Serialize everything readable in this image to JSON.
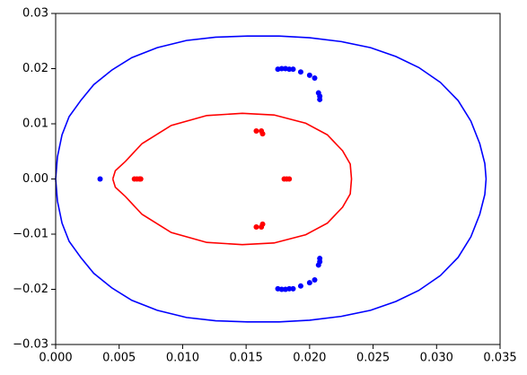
{
  "chart_data": {
    "type": "line",
    "xlim": [
      0,
      0.035
    ],
    "ylim": [
      -0.03,
      0.03
    ],
    "xticks": [
      {
        "value": 0,
        "label": "0.000"
      },
      {
        "value": 0.005,
        "label": "0.005"
      },
      {
        "value": 0.01,
        "label": "0.010"
      },
      {
        "value": 0.015,
        "label": "0.015"
      },
      {
        "value": 0.02,
        "label": "0.020"
      },
      {
        "value": 0.025,
        "label": "0.025"
      },
      {
        "value": 0.03,
        "label": "0.030"
      },
      {
        "value": 0.035,
        "label": "0.035"
      }
    ],
    "yticks": [
      {
        "value": -0.03,
        "label": "−0.03"
      },
      {
        "value": -0.02,
        "label": "−0.02"
      },
      {
        "value": -0.01,
        "label": "−0.01"
      },
      {
        "value": 0,
        "label": "0.00"
      },
      {
        "value": 0.01,
        "label": "0.01"
      },
      {
        "value": 0.02,
        "label": "0.02"
      },
      {
        "value": 0.03,
        "label": "0.03"
      }
    ],
    "grid": false,
    "series": [
      {
        "type": "line",
        "color": "#0000ff",
        "x": [
          0,
          0.00014,
          0.0005,
          0.00106,
          0.002,
          0.003,
          0.0044,
          0.006,
          0.008,
          0.0103,
          0.0126,
          0.0151,
          0.0176,
          0.02,
          0.0225,
          0.0248,
          0.0268,
          0.0286,
          0.0303,
          0.0317,
          0.0327,
          0.0334,
          0.0338,
          0.0339,
          0.0338,
          0.0334,
          0.0327,
          0.0317,
          0.0303,
          0.0286,
          0.0268,
          0.0248,
          0.0225,
          0.02,
          0.0176,
          0.0151,
          0.0126,
          0.0103,
          0.008,
          0.006,
          0.0044,
          0.003,
          0.002,
          0.00106,
          0.0005,
          0.00014,
          0
        ],
        "values": [
          0,
          0.004,
          0.008,
          0.0113,
          0.0143,
          0.0171,
          0.0197,
          0.022,
          0.0238,
          0.0251,
          0.0257,
          0.0259,
          0.0259,
          0.0256,
          0.0249,
          0.0238,
          0.0222,
          0.0202,
          0.0175,
          0.0142,
          0.0105,
          0.0064,
          0.0028,
          0,
          -0.0028,
          -0.0064,
          -0.0105,
          -0.0142,
          -0.0175,
          -0.0202,
          -0.0222,
          -0.0238,
          -0.0249,
          -0.0256,
          -0.0259,
          -0.0259,
          -0.0257,
          -0.0251,
          -0.0238,
          -0.022,
          -0.0197,
          -0.0171,
          -0.0143,
          -0.0113,
          -0.008,
          -0.004,
          0
        ]
      },
      {
        "type": "line",
        "color": "#ff0000",
        "x": [
          0.0045,
          0.0047,
          0.0055,
          0.0068,
          0.0091,
          0.0119,
          0.0147,
          0.0172,
          0.0197,
          0.0214,
          0.0226,
          0.0232,
          0.0233,
          0.0232,
          0.0226,
          0.0214,
          0.0197,
          0.0172,
          0.0147,
          0.0119,
          0.0091,
          0.0068,
          0.0055,
          0.0047,
          0.0045
        ],
        "values": [
          0,
          0.0015,
          0.0032,
          0.0064,
          0.0097,
          0.0115,
          0.0119,
          0.0116,
          0.0101,
          0.008,
          0.0051,
          0.0027,
          0,
          -0.0027,
          -0.0051,
          -0.008,
          -0.0101,
          -0.0116,
          -0.0119,
          -0.0115,
          -0.0097,
          -0.0064,
          -0.0032,
          -0.0015,
          0
        ]
      },
      {
        "type": "scatter",
        "color": "#0000ff",
        "x": [
          0.0035,
          0.0175,
          0.0178,
          0.0181,
          0.0184,
          0.0187,
          0.0193,
          0.02,
          0.0204,
          0.0207,
          0.0208,
          0.0208,
          0.0175,
          0.0178,
          0.0181,
          0.0184,
          0.0187,
          0.0193,
          0.02,
          0.0204,
          0.0207,
          0.0208,
          0.0208
        ],
        "values": [
          0,
          0.0199,
          0.02,
          0.02,
          0.0199,
          0.0199,
          0.0194,
          0.0188,
          0.0183,
          0.0156,
          0.015,
          0.0144,
          -0.0199,
          -0.02,
          -0.02,
          -0.0199,
          -0.0199,
          -0.0194,
          -0.0188,
          -0.0183,
          -0.0156,
          -0.015,
          -0.0144
        ]
      },
      {
        "type": "scatter",
        "color": "#ff0000",
        "x": [
          0.0062,
          0.0064,
          0.0066,
          0.0067,
          0.0158,
          0.0162,
          0.0163,
          0.0158,
          0.0162,
          0.0163,
          0.018,
          0.0182,
          0.0184
        ],
        "values": [
          0,
          0,
          0,
          0,
          0.0087,
          0.0087,
          0.0082,
          -0.0087,
          -0.0087,
          -0.0082,
          0,
          0,
          0
        ]
      }
    ]
  }
}
